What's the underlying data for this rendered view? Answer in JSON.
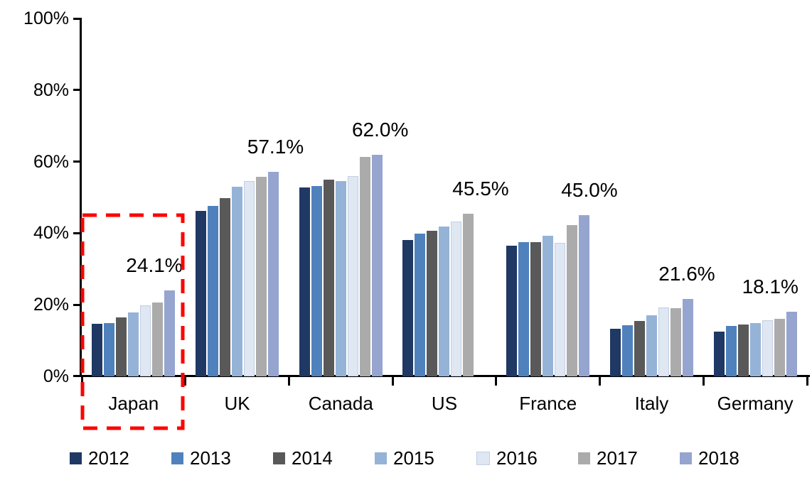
{
  "chart_data": {
    "type": "bar",
    "title": "",
    "categories": [
      "Japan",
      "UK",
      "Canada",
      "US",
      "France",
      "Italy",
      "Germany"
    ],
    "series": [
      {
        "name": "2012",
        "color": "#1F3864",
        "values": [
          14.7,
          46.2,
          52.7,
          38.0,
          36.5,
          13.3,
          12.6
        ]
      },
      {
        "name": "2013",
        "color": "#4F81BD",
        "values": [
          14.9,
          47.6,
          53.2,
          39.8,
          37.6,
          14.3,
          14.1
        ]
      },
      {
        "name": "2014",
        "color": "#595959",
        "values": [
          16.4,
          49.8,
          54.9,
          40.6,
          37.6,
          15.5,
          14.4
        ]
      },
      {
        "name": "2015",
        "color": "#95B3D7",
        "values": [
          17.9,
          53.0,
          54.5,
          41.8,
          39.2,
          17.0,
          14.9
        ]
      },
      {
        "name": "2016",
        "color": "#DEE7F2",
        "border": "#C2CFE3",
        "values": [
          19.8,
          54.6,
          56.0,
          43.2,
          37.3,
          19.2,
          15.6
        ]
      },
      {
        "name": "2017",
        "color": "#ABABAB",
        "values": [
          20.7,
          55.8,
          61.4,
          45.5,
          42.3,
          19.1,
          16.0
        ]
      },
      {
        "name": "2018",
        "color": "#95A5CF",
        "values": [
          24.1,
          57.1,
          62.0,
          null,
          45.0,
          21.6,
          18.1
        ]
      }
    ],
    "data_labels": [
      "24.1%",
      "57.1%",
      "62.0%",
      "45.5%",
      "45.0%",
      "21.6%",
      "18.1%"
    ],
    "ylim": [
      0,
      100
    ],
    "yticks": [
      "0%",
      "20%",
      "40%",
      "60%",
      "80%",
      "100%"
    ],
    "grid": false,
    "legend_position": "bottom",
    "legend_entries": [
      "2012",
      "2013",
      "2014",
      "2015",
      "2016",
      "2017",
      "2018"
    ],
    "highlight": {
      "category": "Japan",
      "style": "red-dashed-box"
    }
  },
  "colors": {
    "axis": "#000000",
    "highlight_box": "#FF0000",
    "background": "#FFFFFF"
  }
}
